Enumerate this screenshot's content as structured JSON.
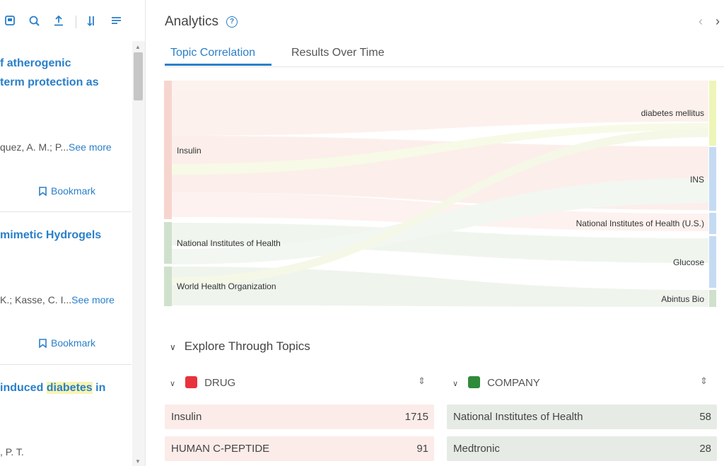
{
  "toolbar": {
    "icons": [
      "save-icon",
      "zoom-icon",
      "export-icon",
      "sort-icon",
      "list-icon"
    ]
  },
  "results": [
    {
      "title_lines": [
        "f atherogenic",
        "term protection as"
      ],
      "authors": "quez, A. M.; P...",
      "see_more": "See more",
      "bookmark": "Bookmark"
    },
    {
      "title_lines": [
        "mimetic Hydrogels"
      ],
      "authors": "K.; Kasse, C. I...",
      "see_more": "See more",
      "bookmark": "Bookmark"
    },
    {
      "title_prefix": "induced ",
      "title_highlight": "diabetes",
      "title_suffix": " in",
      "authors": ", P. T."
    }
  ],
  "analytics": {
    "title": "Analytics",
    "help": "?",
    "prev": "‹",
    "next": "›",
    "tabs": [
      "Topic Correlation",
      "Results Over Time"
    ],
    "active_tab": "Topic Correlation"
  },
  "sankey": {
    "left_nodes": [
      {
        "label": "Insulin",
        "color": "#f7d5cf"
      },
      {
        "label": "National Institutes of Health",
        "color": "#cfe1cc"
      },
      {
        "label": "World Health Organization",
        "color": "#cfe1cc"
      }
    ],
    "right_nodes": [
      {
        "label": "diabetes mellitus",
        "color": "#eef5b8"
      },
      {
        "label": "INS",
        "color": "#c5dbf3"
      },
      {
        "label": "National Institutes of Health (U.S.)",
        "color": "#c5dbf3"
      },
      {
        "label": "Glucose",
        "color": "#c5dbf3"
      },
      {
        "label": "Abintus Bio",
        "color": "#cfe1cc"
      }
    ]
  },
  "explore": {
    "title": "Explore Through Topics",
    "categories": [
      {
        "name": "DRUG",
        "color": "#e8323d",
        "items": [
          {
            "label": "Insulin",
            "count": "1715"
          },
          {
            "label": "HUMAN C-PEPTIDE",
            "count": "91"
          }
        ]
      },
      {
        "name": "COMPANY",
        "color": "#2f8a3a",
        "items": [
          {
            "label": "National Institutes of Health",
            "count": "58"
          },
          {
            "label": "Medtronic",
            "count": "28"
          }
        ]
      }
    ]
  }
}
